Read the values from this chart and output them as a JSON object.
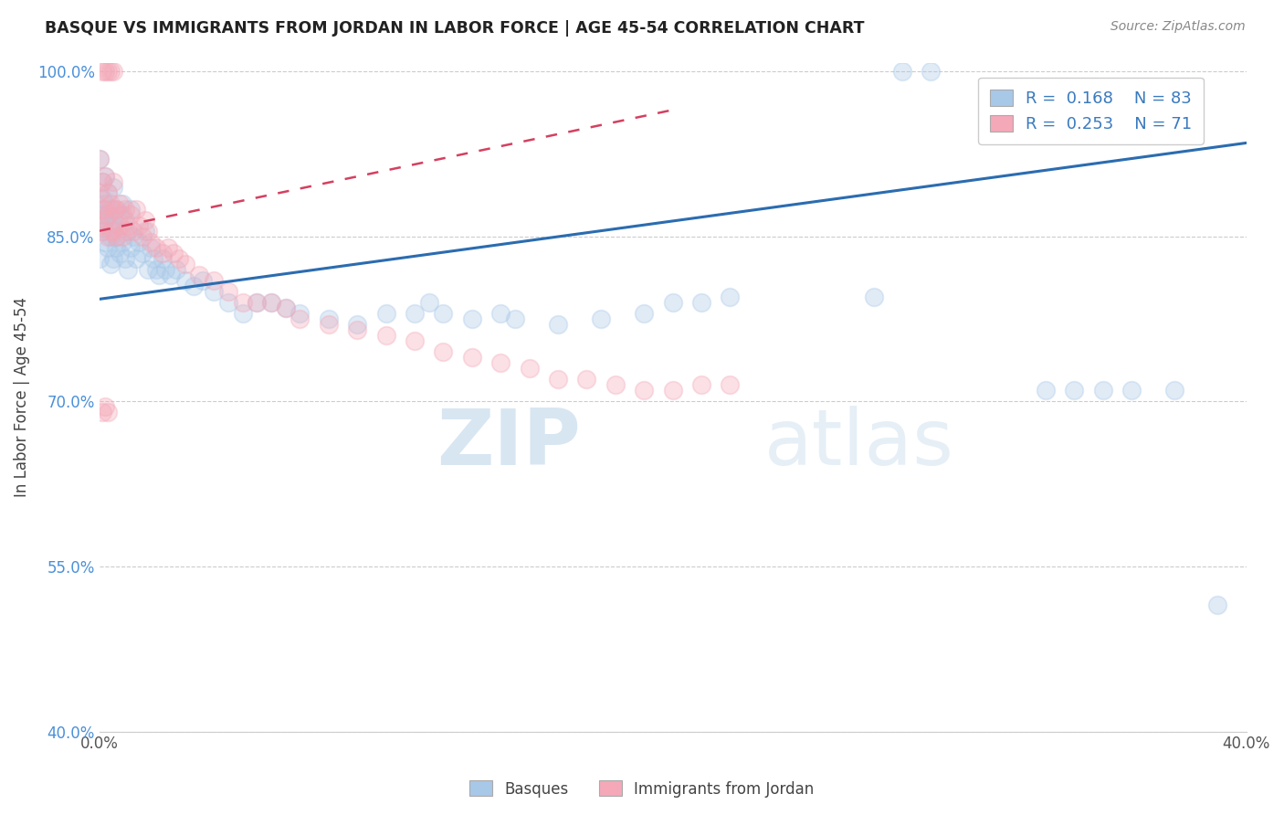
{
  "title": "BASQUE VS IMMIGRANTS FROM JORDAN IN LABOR FORCE | AGE 45-54 CORRELATION CHART",
  "source_text": "Source: ZipAtlas.com",
  "ylabel": "In Labor Force | Age 45-54",
  "x_min": 0.0,
  "x_max": 0.4,
  "y_min": 0.4,
  "y_max": 1.008,
  "x_ticks": [
    0.0,
    0.05,
    0.1,
    0.15,
    0.2,
    0.25,
    0.3,
    0.35,
    0.4
  ],
  "x_tick_labels": [
    "0.0%",
    "",
    "",
    "",
    "",
    "",
    "",
    "",
    "40.0%"
  ],
  "y_ticks": [
    0.4,
    0.55,
    0.7,
    0.85,
    1.0
  ],
  "y_tick_labels": [
    "40.0%",
    "55.0%",
    "70.0%",
    "85.0%",
    "100.0%"
  ],
  "blue_color": "#a8c8e8",
  "pink_color": "#f4a8b8",
  "blue_line_color": "#2b6cb0",
  "pink_line_color": "#d44060",
  "blue_R": 0.168,
  "blue_N": 83,
  "pink_R": 0.253,
  "pink_N": 71,
  "legend_label_blue": "Basques",
  "legend_label_pink": "Immigrants from Jordan",
  "watermark_zip": "ZIP",
  "watermark_atlas": "atlas",
  "blue_trend_x0": 0.0,
  "blue_trend_y0": 0.793,
  "blue_trend_x1": 0.4,
  "blue_trend_y1": 0.935,
  "pink_trend_x0": 0.0,
  "pink_trend_y0": 0.855,
  "pink_trend_x1": 0.2,
  "pink_trend_y1": 0.965,
  "blue_scatter_x": [
    0.0,
    0.0,
    0.0,
    0.001,
    0.001,
    0.001,
    0.001,
    0.002,
    0.002,
    0.002,
    0.002,
    0.003,
    0.003,
    0.003,
    0.003,
    0.004,
    0.004,
    0.004,
    0.005,
    0.005,
    0.005,
    0.005,
    0.006,
    0.006,
    0.006,
    0.007,
    0.007,
    0.008,
    0.008,
    0.009,
    0.009,
    0.01,
    0.01,
    0.011,
    0.011,
    0.012,
    0.013,
    0.014,
    0.015,
    0.016,
    0.017,
    0.018,
    0.019,
    0.02,
    0.021,
    0.022,
    0.023,
    0.025,
    0.027,
    0.03,
    0.033,
    0.036,
    0.04,
    0.045,
    0.05,
    0.055,
    0.06,
    0.065,
    0.07,
    0.08,
    0.09,
    0.1,
    0.11,
    0.115,
    0.12,
    0.13,
    0.14,
    0.145,
    0.16,
    0.175,
    0.19,
    0.2,
    0.21,
    0.22,
    0.27,
    0.28,
    0.29,
    0.33,
    0.34,
    0.35,
    0.36,
    0.375,
    0.39
  ],
  "blue_scatter_y": [
    0.875,
    0.92,
    0.83,
    0.885,
    0.855,
    0.9,
    0.87,
    0.88,
    0.845,
    0.905,
    0.865,
    0.87,
    0.84,
    0.89,
    0.86,
    0.85,
    0.875,
    0.825,
    0.86,
    0.895,
    0.83,
    0.865,
    0.84,
    0.875,
    0.85,
    0.835,
    0.87,
    0.845,
    0.88,
    0.83,
    0.865,
    0.82,
    0.855,
    0.875,
    0.84,
    0.85,
    0.83,
    0.845,
    0.835,
    0.855,
    0.82,
    0.84,
    0.83,
    0.82,
    0.815,
    0.83,
    0.82,
    0.815,
    0.82,
    0.81,
    0.805,
    0.81,
    0.8,
    0.79,
    0.78,
    0.79,
    0.79,
    0.785,
    0.78,
    0.775,
    0.77,
    0.78,
    0.78,
    0.79,
    0.78,
    0.775,
    0.78,
    0.775,
    0.77,
    0.775,
    0.78,
    0.79,
    0.79,
    0.795,
    0.795,
    1.0,
    1.0,
    0.71,
    0.71,
    0.71,
    0.71,
    0.71,
    0.515
  ],
  "pink_scatter_x": [
    0.0,
    0.0,
    0.0,
    0.001,
    0.001,
    0.001,
    0.002,
    0.002,
    0.002,
    0.003,
    0.003,
    0.003,
    0.004,
    0.004,
    0.005,
    0.005,
    0.005,
    0.006,
    0.006,
    0.007,
    0.007,
    0.008,
    0.008,
    0.009,
    0.009,
    0.01,
    0.011,
    0.012,
    0.013,
    0.014,
    0.015,
    0.016,
    0.017,
    0.018,
    0.02,
    0.022,
    0.024,
    0.026,
    0.028,
    0.03,
    0.035,
    0.04,
    0.045,
    0.05,
    0.055,
    0.06,
    0.065,
    0.07,
    0.08,
    0.09,
    0.1,
    0.11,
    0.12,
    0.13,
    0.14,
    0.15,
    0.16,
    0.17,
    0.18,
    0.19,
    0.2,
    0.21,
    0.22,
    0.002,
    0.003,
    0.004,
    0.005,
    0.001,
    0.001,
    0.002,
    0.003
  ],
  "pink_scatter_y": [
    0.86,
    0.89,
    0.92,
    0.875,
    0.9,
    0.855,
    0.875,
    0.905,
    0.865,
    0.89,
    0.85,
    0.87,
    0.88,
    0.855,
    0.875,
    0.9,
    0.855,
    0.875,
    0.85,
    0.88,
    0.86,
    0.87,
    0.85,
    0.875,
    0.855,
    0.86,
    0.87,
    0.855,
    0.875,
    0.86,
    0.85,
    0.865,
    0.855,
    0.845,
    0.84,
    0.835,
    0.84,
    0.835,
    0.83,
    0.825,
    0.815,
    0.81,
    0.8,
    0.79,
    0.79,
    0.79,
    0.785,
    0.775,
    0.77,
    0.765,
    0.76,
    0.755,
    0.745,
    0.74,
    0.735,
    0.73,
    0.72,
    0.72,
    0.715,
    0.71,
    0.71,
    0.715,
    0.715,
    1.0,
    1.0,
    1.0,
    1.0,
    1.0,
    0.69,
    0.695,
    0.69
  ]
}
